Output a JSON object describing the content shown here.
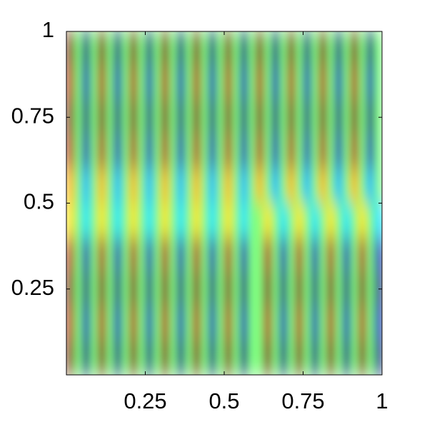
{
  "chart_data": {
    "type": "heatmap",
    "xlim": [
      0,
      1
    ],
    "ylim": [
      0,
      1
    ],
    "xticks": [
      0.25,
      0.5,
      0.75,
      1
    ],
    "yticks": [
      0.25,
      0.5,
      0.75,
      1
    ],
    "clim": [
      -1,
      1
    ],
    "colormap": "jet",
    "z": [
      [
        1,
        0,
        -1,
        0,
        1,
        0,
        -1,
        0,
        1,
        0,
        -1,
        0,
        1,
        0,
        -1,
        0,
        1,
        0,
        -1,
        0,
        1,
        0,
        -1,
        0,
        1,
        0,
        -1,
        0,
        1,
        0,
        -1,
        0,
        1,
        0,
        -1,
        0,
        1,
        0,
        -1,
        0
      ],
      [
        0.9,
        0,
        -0.9,
        0,
        0.9,
        0,
        -0.9,
        0,
        0.9,
        0,
        -0.9,
        0,
        0.9,
        0,
        -0.9,
        0,
        0.9,
        0,
        -0.9,
        0,
        0.9,
        0,
        -0.9,
        0,
        0.9,
        0,
        -0.9,
        0,
        0.9,
        0,
        -0.9,
        0,
        0.9,
        0,
        -0.9,
        0,
        0.9,
        0,
        -0.9,
        0
      ],
      [
        1,
        0,
        -1,
        0,
        1,
        0,
        -1,
        0,
        1,
        0,
        -1,
        0,
        1,
        0,
        -1,
        0,
        1,
        0,
        -1,
        0,
        1,
        0,
        -1,
        0,
        1,
        0,
        -1,
        0,
        1,
        0,
        -1,
        0,
        1,
        0,
        -1,
        0,
        1,
        0,
        -1,
        0
      ],
      [
        0.9,
        0,
        -0.9,
        0,
        0.9,
        0,
        -0.9,
        0,
        0.9,
        0,
        -0.9,
        0,
        0.9,
        0,
        -0.9,
        0,
        0.9,
        0,
        -0.9,
        0,
        0.9,
        0,
        -0.9,
        0,
        0.9,
        0,
        -0.9,
        0,
        0.9,
        0,
        -0.9,
        0,
        0.9,
        0,
        -0.9,
        0,
        0.9,
        0,
        -0.9,
        0
      ],
      [
        0.4,
        0,
        -0.4,
        0,
        0.4,
        0,
        -0.4,
        0,
        0.4,
        0,
        -0.4,
        0,
        0.4,
        0,
        -0.4,
        0,
        0.4,
        0,
        -0.4,
        0,
        0.4,
        0,
        -0.4,
        0,
        0.4,
        0,
        -0.4,
        0,
        0.4,
        0,
        -0.4,
        0,
        0.4,
        0,
        -0.4,
        0,
        0.4,
        0,
        -0.4,
        0
      ],
      [
        0.3,
        0,
        -0.3,
        0,
        0.3,
        0,
        -0.3,
        0,
        0.3,
        0,
        -0.3,
        0,
        0.3,
        0,
        -0.3,
        0,
        0.3,
        0,
        -0.3,
        0,
        0.3,
        0,
        -0.3,
        0,
        0,
        0.3,
        0,
        -0.3,
        0,
        0.3,
        0,
        -0.3,
        0,
        0.3,
        0,
        -0.3,
        0,
        0.3,
        0,
        -0.3
      ],
      [
        0.9,
        0,
        -0.9,
        0,
        0.9,
        0,
        -0.9,
        0,
        0.9,
        0,
        -0.9,
        0,
        0.9,
        0,
        -0.9,
        0,
        0.9,
        0,
        -0.9,
        0,
        0.9,
        0,
        -0.9,
        0,
        0,
        0.9,
        0,
        -0.9,
        0,
        0.9,
        0,
        -0.9,
        0,
        0.9,
        0,
        -0.9,
        0,
        0.9,
        0,
        -0.9
      ],
      [
        1,
        0,
        -1,
        0,
        1,
        0,
        -1,
        0,
        1,
        0,
        -1,
        0,
        1,
        0,
        -1,
        0,
        1,
        0,
        -1,
        0,
        1,
        0,
        -1,
        0,
        0,
        1,
        0,
        -1,
        0,
        1,
        0,
        -1,
        0,
        1,
        0,
        -1,
        0,
        1,
        0,
        -1
      ],
      [
        0.9,
        0,
        -0.9,
        0,
        0.9,
        0,
        -0.9,
        0,
        0.9,
        0,
        -0.9,
        0,
        0.9,
        0,
        -0.9,
        0,
        0.9,
        0,
        -0.9,
        0,
        0.9,
        0,
        -0.9,
        0,
        0,
        0.9,
        0,
        -0.9,
        0,
        0.9,
        0,
        -0.9,
        0,
        0.9,
        0,
        -0.9,
        0,
        0.9,
        0,
        -0.9
      ],
      [
        1,
        0,
        -1,
        0,
        1,
        0,
        -1,
        0,
        1,
        0,
        -1,
        0,
        1,
        0,
        -1,
        0,
        1,
        0,
        -1,
        0,
        1,
        0,
        -1,
        0,
        0,
        1,
        0,
        -1,
        0,
        1,
        0,
        -1,
        0,
        1,
        0,
        -1,
        0,
        1,
        0,
        -1
      ]
    ]
  }
}
